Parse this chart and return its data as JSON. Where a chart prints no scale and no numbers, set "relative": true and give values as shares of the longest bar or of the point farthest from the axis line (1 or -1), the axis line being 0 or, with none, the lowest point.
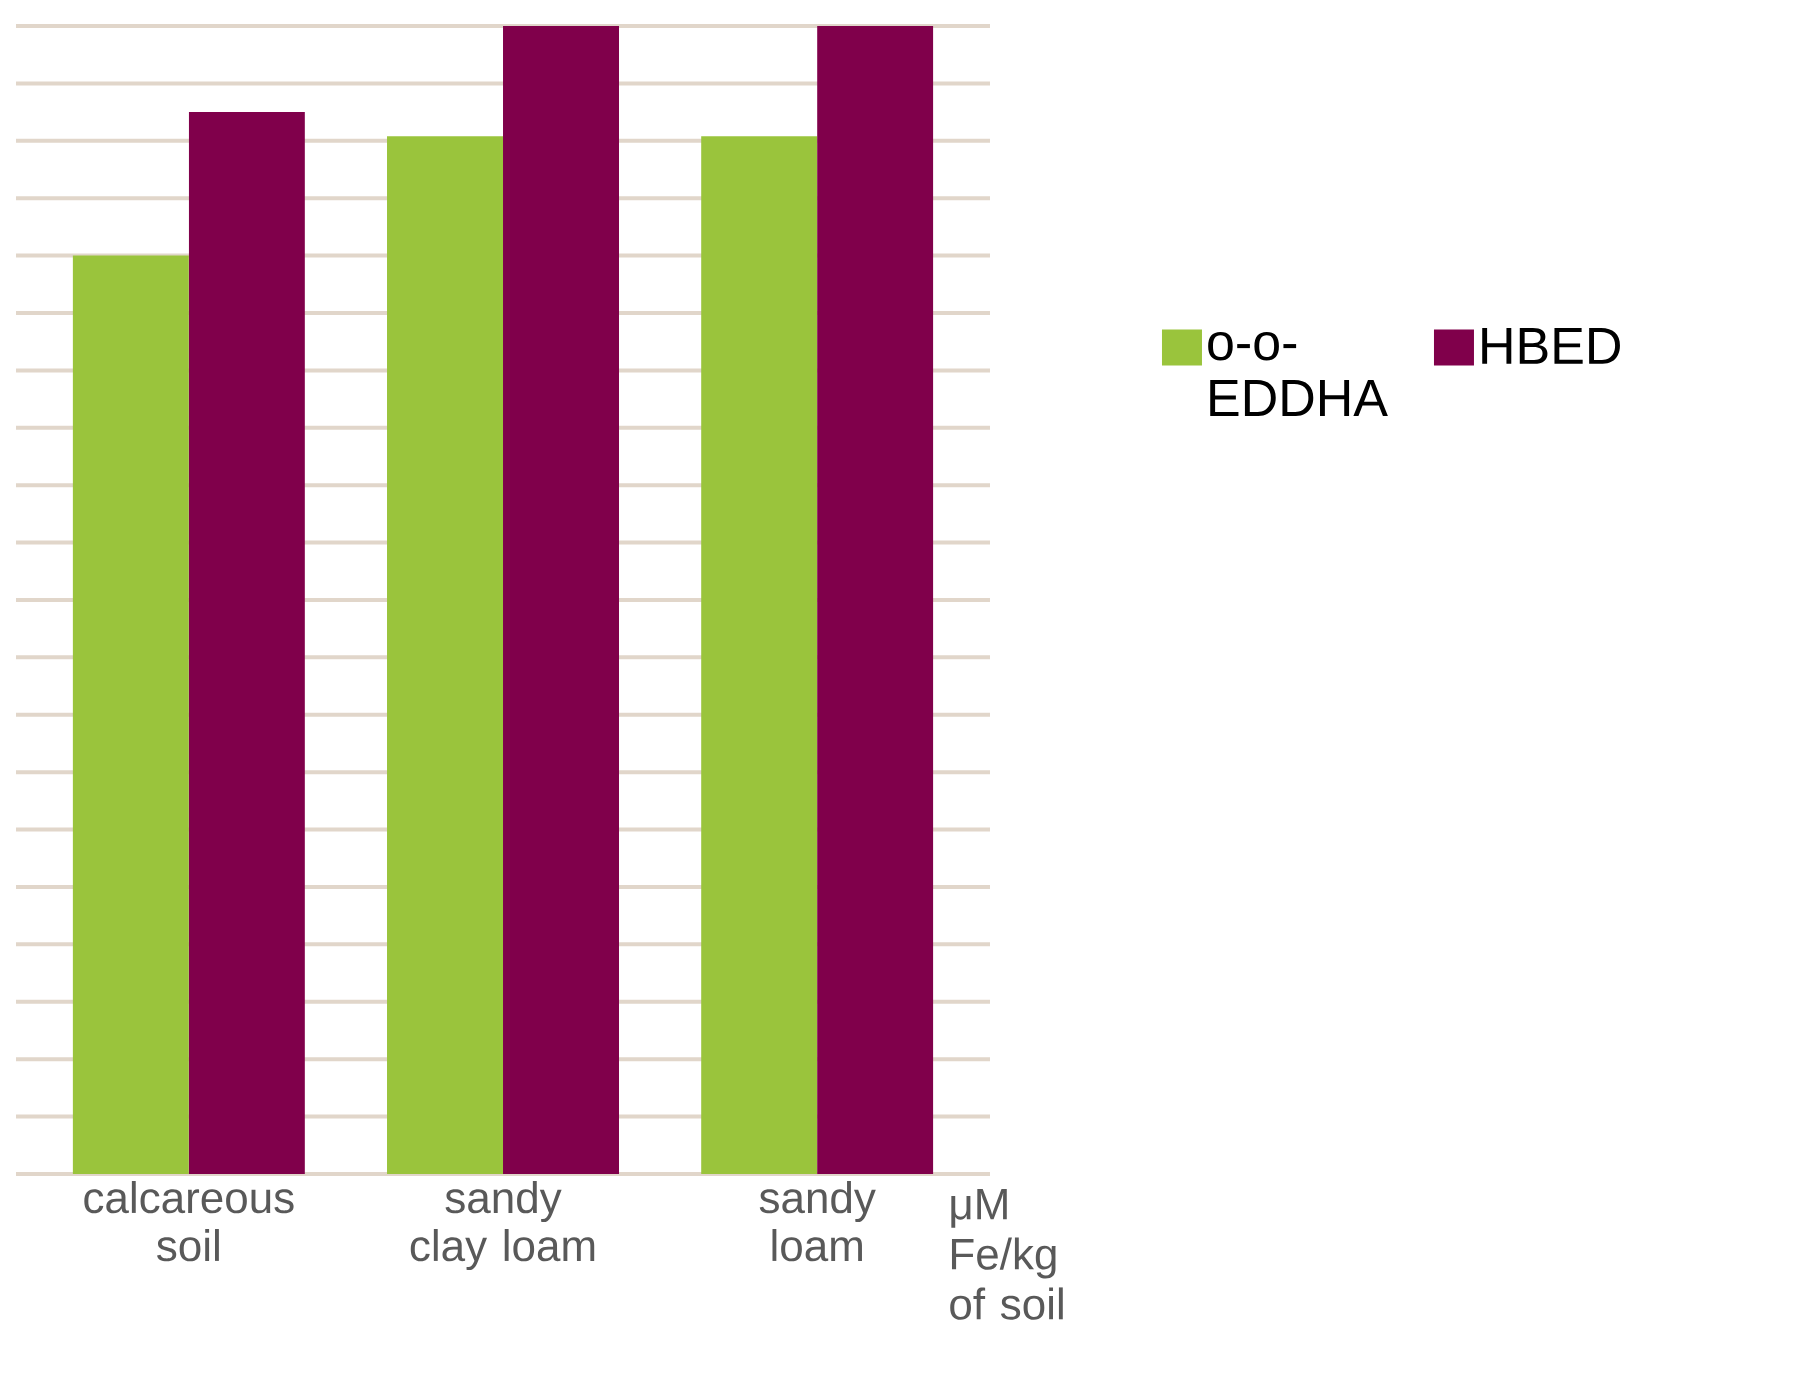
{
  "chart_data": {
    "type": "bar",
    "relative": true,
    "xlabel": "μM Fe/kg of soil",
    "categories": [
      "calcareous soil",
      "sandy clay loam",
      "sandy loam"
    ],
    "series": [
      {
        "name": "o-o-EDDHA",
        "color": "#9ac43c",
        "values": [
          0.8,
          0.904,
          0.904
        ]
      },
      {
        "name": "HBED",
        "color": "#80004b",
        "values": [
          0.925,
          1,
          1
        ]
      }
    ],
    "grid": "y",
    "legend": "right"
  }
}
